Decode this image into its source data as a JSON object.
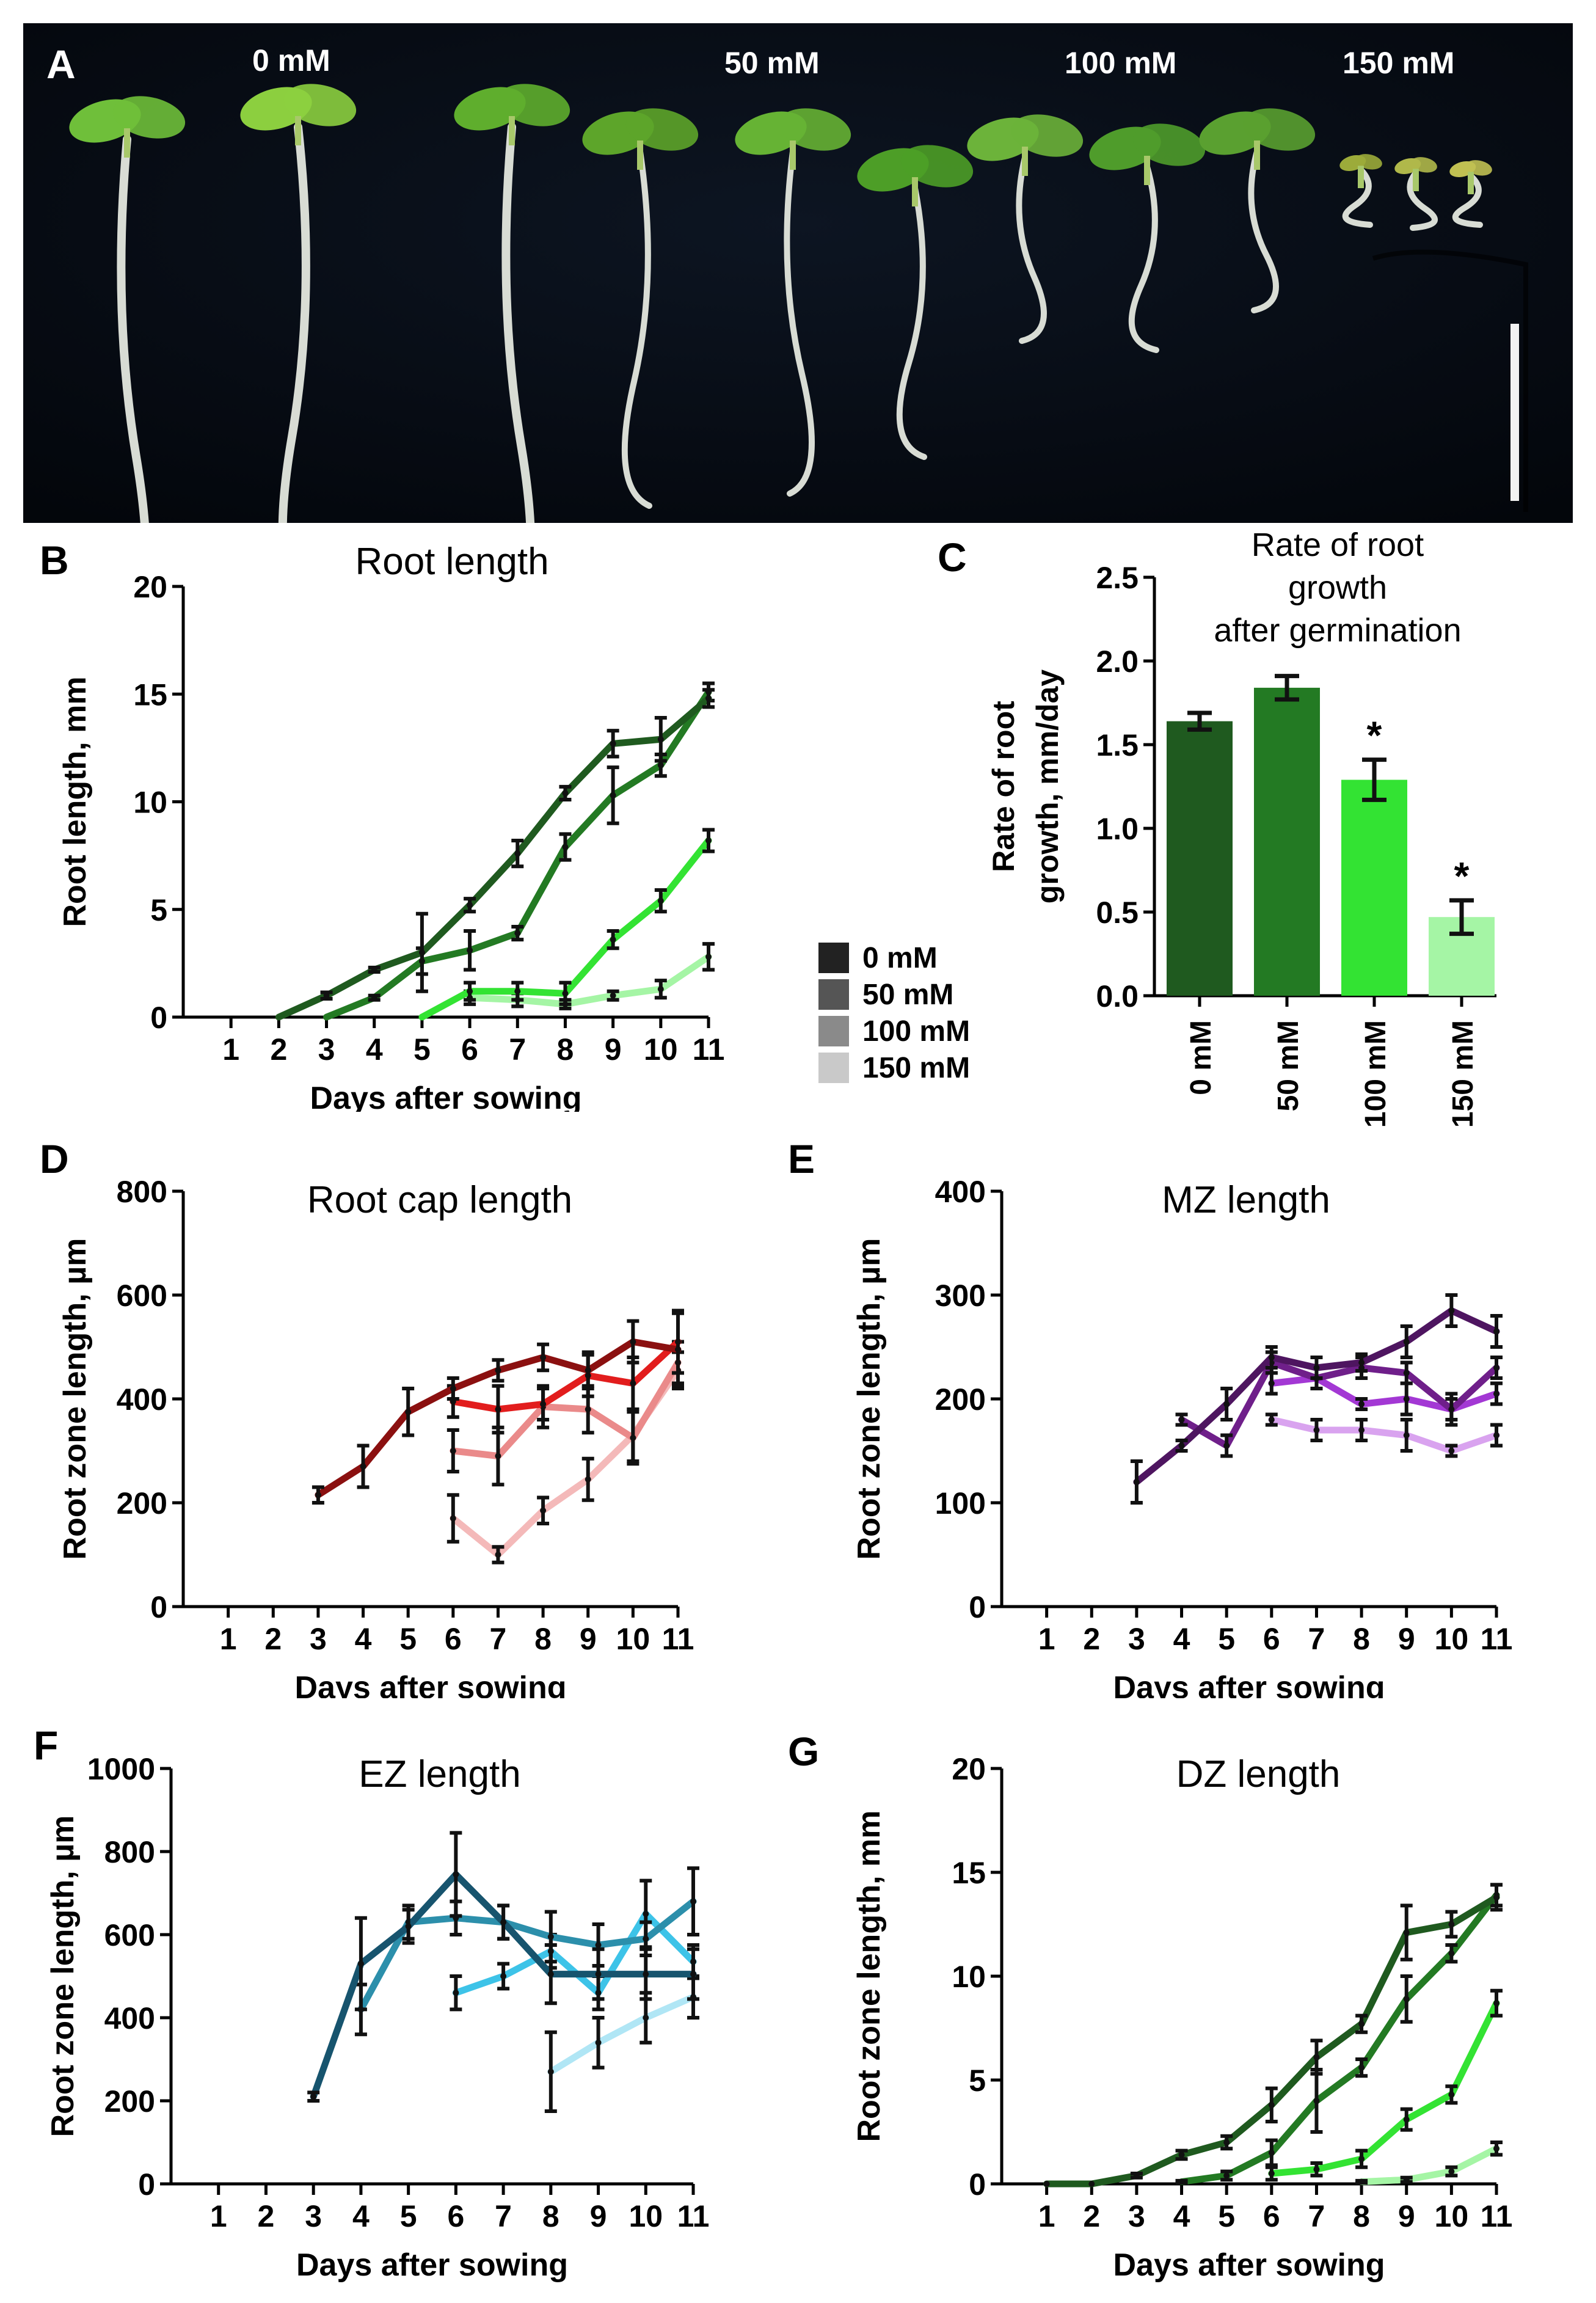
{
  "panel_a": {
    "letter": "A",
    "concentrations": [
      "0 mM",
      "50 mM",
      "100 mM",
      "150 mM"
    ]
  },
  "legend": {
    "entries": [
      "0 mM",
      "50 mM",
      "100 mM",
      "150 mM"
    ],
    "colors": [
      "#222222",
      "#555555",
      "#8a8a8a",
      "#c9c9c9"
    ]
  },
  "chart_data": [
    {
      "id": "B",
      "letter": "B",
      "type": "line",
      "title": "Root length",
      "xlabel": "Days after sowing",
      "ylabel": "Root length, mm",
      "x": [
        1,
        2,
        3,
        4,
        5,
        6,
        7,
        8,
        9,
        10,
        11
      ],
      "ylim": [
        0,
        20
      ],
      "yticks": [
        0,
        5,
        10,
        15,
        20
      ],
      "series": [
        {
          "name": "0 mM",
          "color": "#1f5a1f",
          "points": [
            [
              3,
              1.0,
              0.15
            ],
            [
              4,
              2.2,
              0.1
            ],
            [
              5,
              3.0,
              1.8
            ],
            [
              6,
              5.2,
              0.3
            ],
            [
              7,
              7.6,
              0.6
            ],
            [
              8,
              10.4,
              0.3
            ],
            [
              9,
              12.7,
              0.6
            ],
            [
              10,
              12.9,
              1.0
            ],
            [
              11,
              14.8,
              0.4
            ]
          ],
          "lead": [
            2,
            0
          ]
        },
        {
          "name": "50 mM",
          "color": "#237a23",
          "points": [
            [
              4,
              0.9,
              0.1
            ],
            [
              5,
              2.6,
              0.6
            ],
            [
              6,
              3.1,
              0.9
            ],
            [
              7,
              3.9,
              0.3
            ],
            [
              8,
              7.9,
              0.6
            ],
            [
              9,
              10.3,
              1.3
            ],
            [
              10,
              11.7,
              0.5
            ],
            [
              11,
              15.1,
              0.4
            ]
          ],
          "lead": [
            3,
            0
          ]
        },
        {
          "name": "100 mM",
          "color": "#33e333",
          "points": [
            [
              6,
              1.2,
              0.4
            ],
            [
              7,
              1.2,
              0.4
            ],
            [
              8,
              1.1,
              0.5
            ],
            [
              9,
              3.6,
              0.4
            ],
            [
              10,
              5.4,
              0.5
            ],
            [
              11,
              8.2,
              0.5
            ]
          ],
          "lead": [
            5,
            0
          ]
        },
        {
          "name": "150 mM",
          "color": "#a5f5a5",
          "points": [
            [
              6,
              0.9,
              0.3
            ],
            [
              7,
              0.8,
              0.3
            ],
            [
              8,
              0.6,
              0.2
            ],
            [
              9,
              1.0,
              0.2
            ],
            [
              10,
              1.3,
              0.4
            ],
            [
              11,
              2.8,
              0.6
            ]
          ],
          "lead": []
        }
      ]
    },
    {
      "id": "C",
      "letter": "C",
      "type": "bar",
      "title": [
        "Rate of root",
        "growth",
        "after germination"
      ],
      "ylabel": [
        "Rate of root",
        "growth, mm/day"
      ],
      "ylim": [
        0,
        2.5
      ],
      "yticks": [
        "0.0",
        "0.5",
        "1.0",
        "1.5",
        "2.0",
        "2.5"
      ],
      "categories": [
        "0 mM",
        "50 mM",
        "100 mM",
        "150 mM"
      ],
      "values": [
        1.64,
        1.84,
        1.29,
        0.47
      ],
      "errors": [
        0.05,
        0.07,
        0.12,
        0.1
      ],
      "colors": [
        "#1f5a1f",
        "#237a23",
        "#33e333",
        "#a5f5a5"
      ],
      "annotations": [
        "",
        "",
        "*",
        "*"
      ]
    },
    {
      "id": "D",
      "letter": "D",
      "type": "line",
      "title": "Root cap length",
      "xlabel": "Days after sowing",
      "ylabel": "Root zone length, µm",
      "x": [
        1,
        2,
        3,
        4,
        5,
        6,
        7,
        8,
        9,
        10,
        11
      ],
      "ylim": [
        0,
        800
      ],
      "yticks": [
        0,
        200,
        400,
        600,
        800
      ],
      "series": [
        {
          "name": "0 mM",
          "color": "#8b1010",
          "points": [
            [
              3,
              215,
              15
            ],
            [
              4,
              270,
              40
            ],
            [
              5,
              375,
              45
            ],
            [
              6,
              420,
              20
            ],
            [
              7,
              455,
              20
            ],
            [
              8,
              480,
              25
            ],
            [
              9,
              455,
              35
            ],
            [
              10,
              510,
              40
            ],
            [
              11,
              495,
              70
            ]
          ],
          "lead": []
        },
        {
          "name": "50 mM",
          "color": "#e21d1d",
          "points": [
            [
              6,
              395,
              30
            ],
            [
              7,
              380,
              45
            ],
            [
              8,
              390,
              30
            ],
            [
              9,
              445,
              40
            ],
            [
              10,
              430,
              50
            ],
            [
              11,
              510,
              60
            ]
          ],
          "lead": []
        },
        {
          "name": "100 mM",
          "color": "#ea8a8a",
          "points": [
            [
              6,
              300,
              40
            ],
            [
              7,
              290,
              55
            ],
            [
              8,
              385,
              40
            ],
            [
              9,
              380,
              45
            ],
            [
              10,
              325,
              50
            ],
            [
              11,
              470,
              40
            ]
          ],
          "lead": []
        },
        {
          "name": "150 mM",
          "color": "#f4b9b9",
          "points": [
            [
              6,
              170,
              45
            ],
            [
              7,
              100,
              15
            ],
            [
              8,
              185,
              25
            ],
            [
              9,
              245,
              40
            ],
            [
              10,
              330,
              50
            ],
            [
              11,
              455,
              35
            ]
          ],
          "lead": []
        }
      ]
    },
    {
      "id": "E",
      "letter": "E",
      "type": "line",
      "title": "MZ length",
      "xlabel": "Days after sowing",
      "ylabel": "Root zone length, µm",
      "x": [
        1,
        2,
        3,
        4,
        5,
        6,
        7,
        8,
        9,
        10,
        11
      ],
      "ylim": [
        0,
        400
      ],
      "yticks": [
        0,
        100,
        200,
        300,
        400
      ],
      "series": [
        {
          "name": "0 mM",
          "color": "#4e1560",
          "points": [
            [
              3,
              120,
              20
            ],
            [
              4,
              155,
              5
            ],
            [
              5,
              195,
              15
            ],
            [
              6,
              240,
              10
            ],
            [
              7,
              230,
              10
            ],
            [
              8,
              235,
              8
            ],
            [
              9,
              255,
              15
            ],
            [
              10,
              285,
              15
            ],
            [
              11,
              265,
              15
            ]
          ],
          "lead": []
        },
        {
          "name": "50 mM",
          "color": "#6f1f8a",
          "points": [
            [
              4,
              180,
              5
            ],
            [
              5,
              155,
              10
            ],
            [
              6,
              235,
              10
            ],
            [
              7,
              220,
              10
            ],
            [
              8,
              230,
              10
            ],
            [
              9,
              225,
              10
            ],
            [
              10,
              190,
              10
            ],
            [
              11,
              230,
              10
            ]
          ],
          "lead": []
        },
        {
          "name": "100 mM",
          "color": "#a338d4",
          "points": [
            [
              6,
              215,
              10
            ],
            [
              7,
              220,
              10
            ],
            [
              8,
              195,
              5
            ],
            [
              9,
              200,
              15
            ],
            [
              10,
              190,
              15
            ],
            [
              11,
              205,
              10
            ]
          ],
          "lead": []
        },
        {
          "name": "150 mM",
          "color": "#d9a3ef",
          "points": [
            [
              6,
              180,
              5
            ],
            [
              7,
              170,
              10
            ],
            [
              8,
              170,
              10
            ],
            [
              9,
              165,
              15
            ],
            [
              10,
              150,
              5
            ],
            [
              11,
              165,
              10
            ]
          ],
          "lead": []
        }
      ]
    },
    {
      "id": "F",
      "letter": "F",
      "type": "line",
      "title": "EZ length",
      "xlabel": "Days after sowing",
      "ylabel": "Root zone length, µm",
      "x": [
        1,
        2,
        3,
        4,
        5,
        6,
        7,
        8,
        9,
        10,
        11
      ],
      "ylim": [
        0,
        1000
      ],
      "yticks": [
        0,
        200,
        400,
        600,
        800,
        1000
      ],
      "series": [
        {
          "name": "0 mM",
          "color": "#17546e",
          "points": [
            [
              3,
              210,
              10
            ],
            [
              4,
              530,
              110
            ],
            [
              5,
              620,
              40
            ],
            [
              6,
              745,
              100
            ],
            [
              7,
              630,
              40
            ],
            [
              8,
              505,
              70
            ],
            [
              9,
              505,
              60
            ],
            [
              10,
              505,
              60
            ],
            [
              11,
              505,
              60
            ]
          ],
          "lead": []
        },
        {
          "name": "50 mM",
          "color": "#2c8fab",
          "points": [
            [
              4,
              420,
              60
            ],
            [
              5,
              630,
              40
            ],
            [
              6,
              640,
              40
            ],
            [
              7,
              630,
              40
            ],
            [
              8,
              595,
              60
            ],
            [
              9,
              575,
              50
            ],
            [
              10,
              590,
              40
            ],
            [
              11,
              680,
              80
            ]
          ],
          "lead": []
        },
        {
          "name": "100 mM",
          "color": "#3dc3e8",
          "points": [
            [
              6,
              460,
              40
            ],
            [
              7,
              500,
              30
            ],
            [
              8,
              560,
              40
            ],
            [
              9,
              460,
              40
            ],
            [
              10,
              650,
              80
            ],
            [
              11,
              535,
              40
            ]
          ],
          "lead": []
        },
        {
          "name": "150 mM",
          "color": "#b0e6f5",
          "points": [
            [
              8,
              270,
              95
            ],
            [
              9,
              340,
              60
            ],
            [
              10,
              400,
              60
            ],
            [
              11,
              450,
              50
            ]
          ],
          "lead": []
        }
      ]
    },
    {
      "id": "G",
      "letter": "G",
      "type": "line",
      "title": "DZ length",
      "xlabel": "Days after sowing",
      "ylabel": "Root zone length, mm",
      "x": [
        1,
        2,
        3,
        4,
        5,
        6,
        7,
        8,
        9,
        10,
        11
      ],
      "ylim": [
        0,
        20
      ],
      "yticks": [
        0,
        5,
        10,
        15,
        20
      ],
      "series": [
        {
          "name": "0 mM",
          "color": "#1f5a1f",
          "points": [
            [
              1,
              0,
              0
            ],
            [
              2,
              0,
              0
            ],
            [
              3,
              0.4,
              0.1
            ],
            [
              4,
              1.4,
              0.2
            ],
            [
              5,
              2.0,
              0.3
            ],
            [
              6,
              3.8,
              0.8
            ],
            [
              7,
              6.1,
              0.8
            ],
            [
              8,
              7.7,
              0.4
            ],
            [
              9,
              12.1,
              1.3
            ],
            [
              10,
              12.5,
              0.6
            ],
            [
              11,
              13.8,
              0.6
            ]
          ],
          "lead": []
        },
        {
          "name": "50 mM",
          "color": "#237a23",
          "points": [
            [
              4,
              0.1,
              0.05
            ],
            [
              5,
              0.4,
              0.2
            ],
            [
              6,
              1.5,
              0.6
            ],
            [
              7,
              4.0,
              1.5
            ],
            [
              8,
              5.6,
              0.4
            ],
            [
              9,
              8.9,
              1.1
            ],
            [
              10,
              11.1,
              0.4
            ],
            [
              11,
              13.9,
              0.5
            ]
          ],
          "lead": []
        },
        {
          "name": "100 mM",
          "color": "#33e333",
          "points": [
            [
              6,
              0.5,
              0.3
            ],
            [
              7,
              0.7,
              0.3
            ],
            [
              8,
              1.2,
              0.4
            ],
            [
              9,
              3.1,
              0.5
            ],
            [
              10,
              4.3,
              0.4
            ],
            [
              11,
              8.7,
              0.6
            ]
          ],
          "lead": []
        },
        {
          "name": "150 mM",
          "color": "#a5f5a5",
          "points": [
            [
              8,
              0.1,
              0.05
            ],
            [
              9,
              0.2,
              0.1
            ],
            [
              10,
              0.6,
              0.2
            ],
            [
              11,
              1.7,
              0.3
            ]
          ],
          "lead": []
        }
      ]
    }
  ]
}
